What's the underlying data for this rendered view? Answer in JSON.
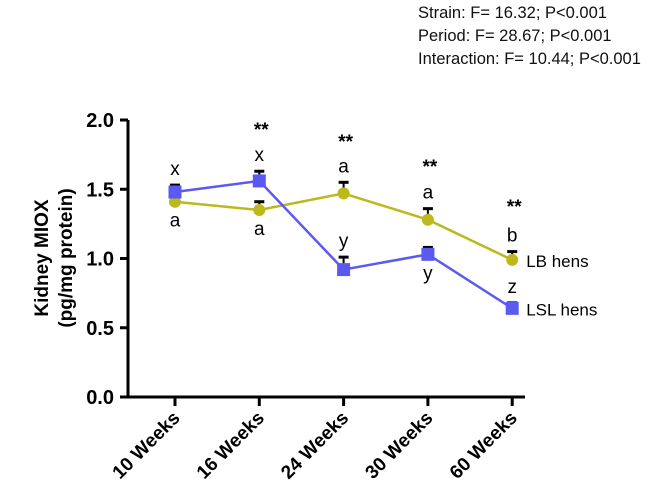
{
  "stats": [
    "Strain: F= 16.32; P<0.001",
    "Period: F= 28.67; P<0.001",
    "Interaction: F= 10.44; P<0.001"
  ],
  "chart_data": {
    "type": "line",
    "title": "",
    "xlabel": "",
    "ylabel": [
      "Kidney MIOX",
      "(pg/mg protein)"
    ],
    "ylim": [
      0,
      2.0
    ],
    "yticks": [
      "0.0",
      "0.5",
      "1.0",
      "1.5",
      "2.0"
    ],
    "ytick_values": [
      0,
      0.5,
      1.0,
      1.5,
      2.0
    ],
    "categories": [
      "10 Weeks",
      "16 Weeks",
      "24 Weeks",
      "30 Weeks",
      "60 Weeks"
    ],
    "significance": [
      "",
      "**",
      "**",
      "**",
      "**"
    ],
    "series": [
      {
        "name": "LB hens",
        "color": "#bdb81c",
        "marker": "circle",
        "values": [
          1.41,
          1.35,
          1.47,
          1.28,
          0.99
        ],
        "errors": [
          0.05,
          0.06,
          0.08,
          0.08,
          0.06
        ],
        "letters": [
          "a",
          "a",
          "a",
          "a",
          "b"
        ],
        "letter_pos": [
          "below",
          "below",
          "above",
          "above",
          "above"
        ]
      },
      {
        "name": "LSL hens",
        "color": "#5a5af2",
        "marker": "square",
        "values": [
          1.48,
          1.56,
          0.92,
          1.03,
          0.64
        ],
        "errors": [
          0.05,
          0.07,
          0.09,
          0.05,
          0.04
        ],
        "letters": [
          "x",
          "x",
          "y",
          "y",
          "z"
        ],
        "letter_pos": [
          "above",
          "above",
          "above",
          "below",
          "above"
        ]
      }
    ],
    "legend": "right-of-line-ends",
    "grid": false
  }
}
